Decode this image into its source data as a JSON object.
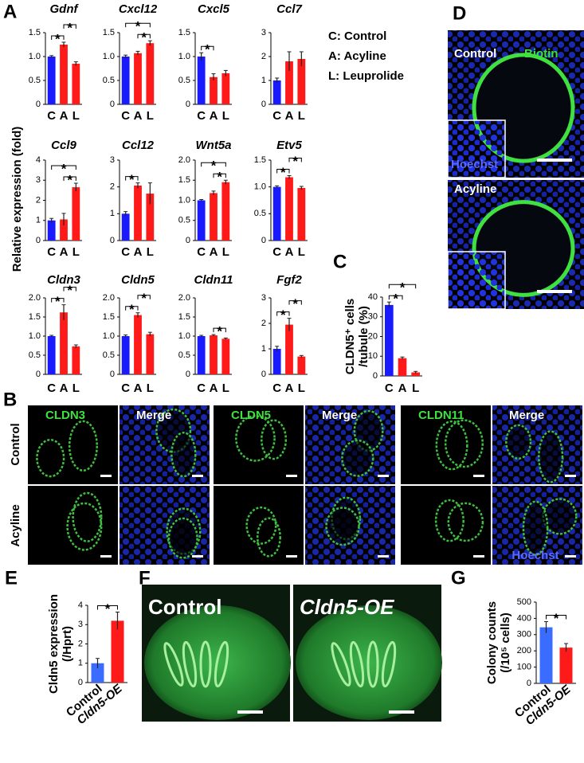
{
  "panel_letters": [
    "A",
    "B",
    "C",
    "D",
    "E",
    "F",
    "G"
  ],
  "panel_a_ylabel": "Relative expression (fold)",
  "panel_a_key": [
    "C: Control",
    "A: Acyline",
    "L: Leuprolide"
  ],
  "chart_data": [
    {
      "type": "bar",
      "title": "Gdnf",
      "categories": [
        "C",
        "A",
        "L"
      ],
      "values": [
        1.0,
        1.25,
        0.85
      ],
      "errors": [
        0.02,
        0.05,
        0.04
      ],
      "colors": [
        "#1a1aff",
        "#ff1a1a",
        "#ff1a1a"
      ],
      "ylim": [
        0,
        1.5
      ],
      "yticks": [
        0,
        0.5,
        {
          "value": 1,
          "label": "1.0"
        },
        1.5
      ],
      "significance": [
        {
          "pair": [
            "C",
            "A"
          ],
          "label": "*"
        },
        {
          "pair": [
            "A",
            "L"
          ],
          "label": "*"
        }
      ]
    },
    {
      "type": "bar",
      "title": "Cxcl12",
      "categories": [
        "C",
        "A",
        "L"
      ],
      "values": [
        1.0,
        1.07,
        1.28
      ],
      "errors": [
        0.03,
        0.04,
        0.05
      ],
      "colors": [
        "#1a1aff",
        "#ff1a1a",
        "#ff1a1a"
      ],
      "ylim": [
        0,
        1.5
      ],
      "yticks": [
        0,
        0.5,
        {
          "value": 1,
          "label": "1.0"
        },
        1.5
      ],
      "significance": [
        {
          "pair": [
            "A",
            "L"
          ],
          "label": "*"
        },
        {
          "pair": [
            "C",
            "L"
          ],
          "label": "*"
        }
      ]
    },
    {
      "type": "bar",
      "title": "Cxcl5",
      "categories": [
        "C",
        "A",
        "L"
      ],
      "values": [
        1.0,
        0.57,
        0.65
      ],
      "errors": [
        0.08,
        0.07,
        0.06
      ],
      "colors": [
        "#1a1aff",
        "#ff1a1a",
        "#ff1a1a"
      ],
      "ylim": [
        0,
        1.5
      ],
      "yticks": [
        0,
        0.5,
        {
          "value": 1,
          "label": "1.0"
        },
        1.5
      ],
      "significance": [
        {
          "pair": [
            "C",
            "A"
          ],
          "label": "*"
        }
      ]
    },
    {
      "type": "bar",
      "title": "Ccl7",
      "categories": [
        "C",
        "A",
        "L"
      ],
      "values": [
        1.0,
        1.8,
        1.9
      ],
      "errors": [
        0.1,
        0.4,
        0.3
      ],
      "colors": [
        "#1a1aff",
        "#ff1a1a",
        "#ff1a1a"
      ],
      "ylim": [
        0,
        3
      ],
      "yticks": [
        0,
        1,
        2,
        3
      ],
      "significance": []
    },
    {
      "type": "bar",
      "title": "Ccl9",
      "categories": [
        "C",
        "A",
        "L"
      ],
      "values": [
        1.0,
        1.05,
        2.65
      ],
      "errors": [
        0.1,
        0.3,
        0.2
      ],
      "colors": [
        "#1a1aff",
        "#ff1a1a",
        "#ff1a1a"
      ],
      "ylim": [
        0,
        4
      ],
      "yticks": [
        0,
        1,
        2,
        3,
        4
      ],
      "significance": [
        {
          "pair": [
            "A",
            "L"
          ],
          "label": "*"
        },
        {
          "pair": [
            "C",
            "L"
          ],
          "label": "*"
        }
      ]
    },
    {
      "type": "bar",
      "title": "Ccl12",
      "categories": [
        "C",
        "A",
        "L"
      ],
      "values": [
        1.0,
        2.05,
        1.75
      ],
      "errors": [
        0.08,
        0.1,
        0.4
      ],
      "colors": [
        "#1a1aff",
        "#ff1a1a",
        "#ff1a1a"
      ],
      "ylim": [
        0,
        3
      ],
      "yticks": [
        0,
        1,
        2,
        3
      ],
      "significance": [
        {
          "pair": [
            "C",
            "A"
          ],
          "label": "*"
        }
      ]
    },
    {
      "type": "bar",
      "title": "Wnt5a",
      "categories": [
        "C",
        "A",
        "L"
      ],
      "values": [
        1.0,
        1.18,
        1.45
      ],
      "errors": [
        0.02,
        0.05,
        0.05
      ],
      "colors": [
        "#1a1aff",
        "#ff1a1a",
        "#ff1a1a"
      ],
      "ylim": [
        0,
        2
      ],
      "yticks": [
        0,
        0.5,
        {
          "value": 1,
          "label": "1.0"
        },
        1.5,
        {
          "value": 2,
          "label": "2.0"
        }
      ],
      "significance": [
        {
          "pair": [
            "A",
            "L"
          ],
          "label": "*"
        },
        {
          "pair": [
            "C",
            "L"
          ],
          "label": "*"
        }
      ]
    },
    {
      "type": "bar",
      "title": "Etv5",
      "categories": [
        "C",
        "A",
        "L"
      ],
      "values": [
        1.0,
        1.18,
        0.98
      ],
      "errors": [
        0.02,
        0.03,
        0.03
      ],
      "colors": [
        "#1a1aff",
        "#ff1a1a",
        "#ff1a1a"
      ],
      "ylim": [
        0,
        1.5
      ],
      "yticks": [
        0,
        0.5,
        {
          "value": 1,
          "label": "1.0"
        },
        1.5
      ],
      "significance": [
        {
          "pair": [
            "C",
            "A"
          ],
          "label": "*"
        },
        {
          "pair": [
            "A",
            "L"
          ],
          "label": "*"
        }
      ]
    },
    {
      "type": "bar",
      "title": "Cldn3",
      "categories": [
        "C",
        "A",
        "L"
      ],
      "values": [
        1.0,
        1.62,
        0.73
      ],
      "errors": [
        0.02,
        0.2,
        0.04
      ],
      "colors": [
        "#1a1aff",
        "#ff1a1a",
        "#ff1a1a"
      ],
      "ylim": [
        0,
        2
      ],
      "yticks": [
        0,
        0.5,
        {
          "value": 1,
          "label": "1.0"
        },
        1.5,
        {
          "value": 2,
          "label": "2.0"
        }
      ],
      "significance": [
        {
          "pair": [
            "C",
            "A"
          ],
          "label": "*"
        },
        {
          "pair": [
            "A",
            "L"
          ],
          "label": "*"
        }
      ]
    },
    {
      "type": "bar",
      "title": "Cldn5",
      "categories": [
        "C",
        "A",
        "L"
      ],
      "values": [
        1.0,
        1.55,
        1.05
      ],
      "errors": [
        0.03,
        0.06,
        0.05
      ],
      "colors": [
        "#1a1aff",
        "#ff1a1a",
        "#ff1a1a"
      ],
      "ylim": [
        0,
        2
      ],
      "yticks": [
        0,
        0.5,
        {
          "value": 1,
          "label": "1.0"
        },
        1.5,
        {
          "value": 2,
          "label": "2.0"
        }
      ],
      "significance": [
        {
          "pair": [
            "C",
            "A"
          ],
          "label": "*"
        },
        {
          "pair": [
            "A",
            "L"
          ],
          "label": "*"
        }
      ]
    },
    {
      "type": "bar",
      "title": "Cldn11",
      "categories": [
        "C",
        "A",
        "L"
      ],
      "values": [
        1.0,
        1.02,
        0.93
      ],
      "errors": [
        0.02,
        0.02,
        0.02
      ],
      "colors": [
        "#1a1aff",
        "#ff1a1a",
        "#ff1a1a"
      ],
      "ylim": [
        0,
        2
      ],
      "yticks": [
        0,
        0.5,
        {
          "value": 1,
          "label": "1.0"
        },
        1.5,
        {
          "value": 2,
          "label": "2.0"
        }
      ],
      "significance": [
        {
          "pair": [
            "A",
            "L"
          ],
          "label": "*"
        }
      ]
    },
    {
      "type": "bar",
      "title": "Fgf2",
      "categories": [
        "C",
        "A",
        "L"
      ],
      "values": [
        1.0,
        1.95,
        0.7
      ],
      "errors": [
        0.1,
        0.25,
        0.04
      ],
      "colors": [
        "#1a1aff",
        "#ff1a1a",
        "#ff1a1a"
      ],
      "ylim": [
        0,
        3
      ],
      "yticks": [
        0,
        1,
        2,
        3
      ],
      "significance": [
        {
          "pair": [
            "C",
            "A"
          ],
          "label": "*"
        },
        {
          "pair": [
            "A",
            "L"
          ],
          "label": "*"
        }
      ]
    },
    {
      "type": "bar",
      "ylabel": [
        "CLDN5⁺ cells",
        "/tubule (%)"
      ],
      "categories": [
        "C",
        "A",
        "L"
      ],
      "values": [
        36,
        9,
        1.8
      ],
      "errors": [
        1.5,
        0.6,
        0.5
      ],
      "colors": [
        "#1a1aff",
        "#ff1a1a",
        "#ff1a1a"
      ],
      "ylim": [
        0,
        40
      ],
      "yticks": [
        0,
        10,
        20,
        30,
        40
      ],
      "significance": [
        {
          "pair": [
            "C",
            "A"
          ],
          "label": "*"
        },
        {
          "pair": [
            "C",
            "L"
          ],
          "label": "*"
        }
      ]
    },
    {
      "type": "bar",
      "ylabel": [
        "Cldn5 expression",
        "(/Hprt)"
      ],
      "categories": [
        "Control",
        "Cldn5-OE"
      ],
      "values": [
        1.0,
        3.2
      ],
      "errors": [
        0.25,
        0.45
      ],
      "colors": [
        "#3a6cff",
        "#ff1a1a"
      ],
      "ylim": [
        0,
        4
      ],
      "yticks": [
        0,
        1,
        2,
        3,
        4
      ],
      "significance": [
        {
          "pair": [
            "Control",
            "Cldn5-OE"
          ],
          "label": "*"
        }
      ]
    },
    {
      "type": "bar",
      "ylabel": [
        "Colony counts",
        "(/10⁵ cells)"
      ],
      "categories": [
        "Control",
        "Cldn5-OE"
      ],
      "values": [
        345,
        220
      ],
      "errors": [
        35,
        25
      ],
      "colors": [
        "#3a6cff",
        "#ff1a1a"
      ],
      "ylim": [
        0,
        500
      ],
      "yticks": [
        0,
        100,
        200,
        300,
        400,
        500
      ],
      "significance": [
        {
          "pair": [
            "Control",
            "Cldn5-OE"
          ],
          "label": "*"
        }
      ]
    }
  ],
  "panel_b": {
    "columns": [
      "CLDN3",
      "Merge",
      "CLDN5",
      "Merge",
      "CLDN11",
      "Merge"
    ],
    "rows": [
      "Control",
      "Acyline"
    ],
    "stain": "Hoechst"
  },
  "panel_d": {
    "labels": [
      "Control",
      "Acyline"
    ],
    "stains": [
      "Biotin",
      "Hoechst"
    ]
  },
  "panel_f": {
    "labels": [
      "Control",
      "Cldn5-OE"
    ]
  }
}
